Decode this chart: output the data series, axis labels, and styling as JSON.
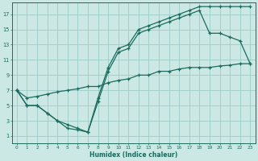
{
  "xlabel": "Humidex (Indice chaleur)",
  "bg_color": "#cce8e4",
  "grid_color": "#9dccc7",
  "line_color": "#1a6b5e",
  "xlim": [
    -0.5,
    23.5
  ],
  "ylim": [
    0,
    18.5
  ],
  "xticks": [
    0,
    1,
    2,
    3,
    4,
    5,
    6,
    7,
    8,
    9,
    10,
    11,
    12,
    13,
    14,
    15,
    16,
    17,
    18,
    19,
    20,
    21,
    22,
    23
  ],
  "yticks": [
    1,
    3,
    5,
    7,
    9,
    11,
    13,
    15,
    17
  ],
  "line1_x": [
    0,
    1,
    2,
    3,
    4,
    5,
    6,
    7,
    8,
    9,
    10,
    11,
    12,
    13,
    14,
    15,
    16,
    17,
    18,
    19,
    20,
    21,
    22,
    23
  ],
  "line1_y": [
    7,
    5,
    5,
    4,
    3,
    2,
    1.8,
    1.5,
    6,
    10,
    12.5,
    13,
    15,
    15.5,
    16,
    16.5,
    17,
    17.5,
    18,
    18,
    18,
    18,
    18,
    18
  ],
  "line2_x": [
    0,
    1,
    2,
    3,
    4,
    5,
    6,
    7,
    8,
    9,
    10,
    11,
    12,
    13,
    14,
    15,
    16,
    17,
    18,
    19,
    20,
    21,
    22,
    23
  ],
  "line2_y": [
    7,
    5,
    5,
    4,
    3,
    2.5,
    2,
    1.5,
    5.5,
    9.5,
    12,
    12.5,
    14.5,
    15,
    15.5,
    16,
    16.5,
    17,
    17.5,
    14.5,
    14.5,
    14,
    13.5,
    10.5
  ],
  "line3_x": [
    0,
    1,
    2,
    3,
    4,
    5,
    6,
    7,
    8,
    9,
    10,
    11,
    12,
    13,
    14,
    15,
    16,
    17,
    18,
    19,
    20,
    21,
    22,
    23
  ],
  "line3_y": [
    7,
    6,
    6.2,
    6.5,
    6.8,
    7,
    7.2,
    7.5,
    7.5,
    8,
    8.3,
    8.5,
    9,
    9,
    9.5,
    9.5,
    9.8,
    10,
    10,
    10,
    10.2,
    10.3,
    10.5,
    10.5
  ]
}
